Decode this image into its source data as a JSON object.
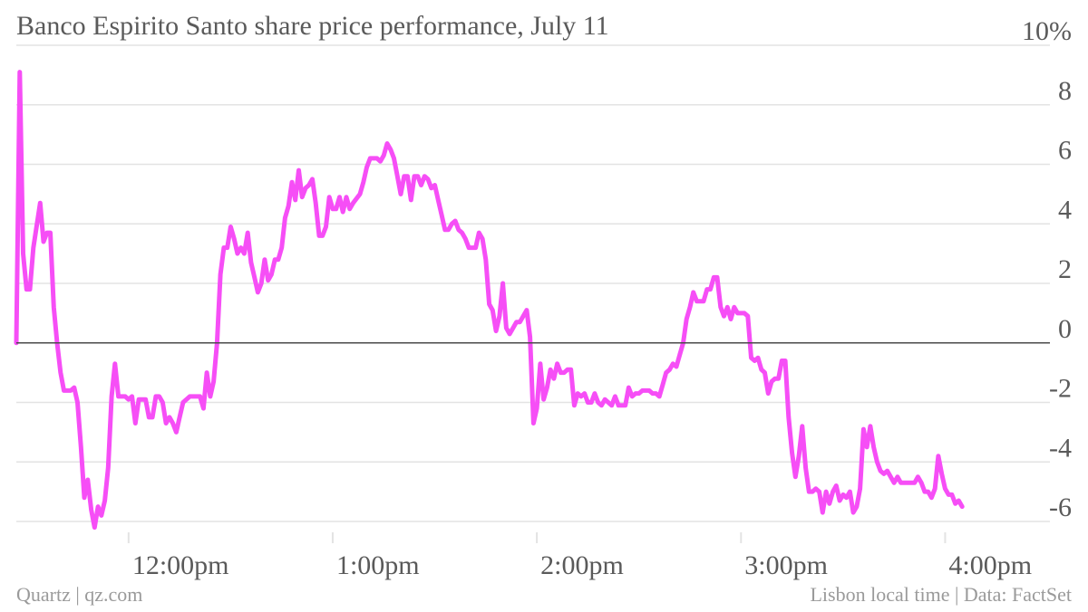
{
  "chart_data": {
    "type": "line",
    "title": "Banco Espirito Santo share price performance, July 11",
    "xlabel": "",
    "ylabel": "",
    "y_unit_label": "10%",
    "ylim": [
      -6,
      10
    ],
    "y_ticks": [
      {
        "value": 10,
        "label": "10%"
      },
      {
        "value": 8,
        "label": "8"
      },
      {
        "value": 6,
        "label": "6"
      },
      {
        "value": 4,
        "label": "4"
      },
      {
        "value": 2,
        "label": "2"
      },
      {
        "value": 0,
        "label": "0"
      },
      {
        "value": -2,
        "label": "-2"
      },
      {
        "value": -4,
        "label": "-4"
      },
      {
        "value": -6,
        "label": "-6"
      }
    ],
    "x_ticks": [
      {
        "time": "12:00",
        "label": "12:00pm"
      },
      {
        "time": "13:00",
        "label": "1:00pm"
      },
      {
        "time": "14:00",
        "label": "2:00pm"
      },
      {
        "time": "15:00",
        "label": "3:00pm"
      },
      {
        "time": "16:00",
        "label": "4:00pm"
      }
    ],
    "xlim": [
      "11:27",
      "16:30"
    ],
    "grid": true,
    "legend": "none",
    "line_color": "#f64ef6",
    "series": [
      {
        "values": [
          [
            "11:27",
            0.0
          ],
          [
            "11:28",
            9.1
          ],
          [
            "11:29",
            3.0
          ],
          [
            "11:30",
            1.8
          ],
          [
            "11:31",
            1.8
          ],
          [
            "11:32",
            3.2
          ],
          [
            "11:34",
            4.7
          ],
          [
            "11:35",
            3.4
          ],
          [
            "11:36",
            3.7
          ],
          [
            "11:37",
            3.7
          ],
          [
            "11:38",
            1.2
          ],
          [
            "11:39",
            0.0
          ],
          [
            "11:40",
            -1.0
          ],
          [
            "11:41",
            -1.6
          ],
          [
            "11:42",
            -1.6
          ],
          [
            "11:43",
            -1.6
          ],
          [
            "11:44",
            -1.5
          ],
          [
            "11:45",
            -2.0
          ],
          [
            "11:46",
            -3.5
          ],
          [
            "11:47",
            -5.2
          ],
          [
            "11:48",
            -4.6
          ],
          [
            "11:49",
            -5.6
          ],
          [
            "11:50",
            -6.2
          ],
          [
            "11:51",
            -5.5
          ],
          [
            "11:52",
            -5.8
          ],
          [
            "11:53",
            -5.3
          ],
          [
            "11:54",
            -4.2
          ],
          [
            "11:55",
            -1.8
          ],
          [
            "11:56",
            -0.7
          ],
          [
            "11:57",
            -1.8
          ],
          [
            "11:59",
            -1.8
          ],
          [
            "12:00",
            -1.9
          ],
          [
            "12:01",
            -1.8
          ],
          [
            "12:02",
            -2.7
          ],
          [
            "12:03",
            -1.9
          ],
          [
            "12:05",
            -1.9
          ],
          [
            "12:06",
            -2.5
          ],
          [
            "12:07",
            -2.5
          ],
          [
            "12:08",
            -1.8
          ],
          [
            "12:09",
            -1.8
          ],
          [
            "12:10",
            -2.0
          ],
          [
            "12:11",
            -2.7
          ],
          [
            "12:12",
            -2.5
          ],
          [
            "12:13",
            -2.7
          ],
          [
            "12:14",
            -3.0
          ],
          [
            "12:15",
            -2.5
          ],
          [
            "12:16",
            -2.0
          ],
          [
            "12:18",
            -1.8
          ],
          [
            "12:19",
            -1.8
          ],
          [
            "12:20",
            -1.8
          ],
          [
            "12:21",
            -1.8
          ],
          [
            "12:22",
            -2.2
          ],
          [
            "12:23",
            -1.0
          ],
          [
            "12:24",
            -1.8
          ],
          [
            "12:25",
            -1.3
          ],
          [
            "12:26",
            0.0
          ],
          [
            "12:27",
            2.3
          ],
          [
            "12:28",
            3.2
          ],
          [
            "12:29",
            3.2
          ],
          [
            "12:30",
            3.9
          ],
          [
            "12:31",
            3.5
          ],
          [
            "12:32",
            3.0
          ],
          [
            "12:33",
            3.2
          ],
          [
            "12:34",
            3.0
          ],
          [
            "12:35",
            3.7
          ],
          [
            "12:36",
            2.7
          ],
          [
            "12:37",
            2.2
          ],
          [
            "12:38",
            1.7
          ],
          [
            "12:39",
            2.0
          ],
          [
            "12:40",
            2.8
          ],
          [
            "12:41",
            2.1
          ],
          [
            "12:42",
            2.3
          ],
          [
            "12:43",
            2.8
          ],
          [
            "12:44",
            2.8
          ],
          [
            "12:45",
            3.2
          ],
          [
            "12:46",
            4.2
          ],
          [
            "12:47",
            4.6
          ],
          [
            "12:48",
            5.4
          ],
          [
            "12:49",
            4.8
          ],
          [
            "12:50",
            5.8
          ],
          [
            "12:51",
            4.9
          ],
          [
            "12:52",
            5.2
          ],
          [
            "12:53",
            5.3
          ],
          [
            "12:54",
            5.5
          ],
          [
            "12:55",
            4.7
          ],
          [
            "12:56",
            3.6
          ],
          [
            "12:57",
            3.6
          ],
          [
            "12:58",
            3.9
          ],
          [
            "12:59",
            4.9
          ],
          [
            "13:00",
            4.5
          ],
          [
            "13:01",
            4.5
          ],
          [
            "13:02",
            4.9
          ],
          [
            "13:03",
            4.4
          ],
          [
            "13:04",
            4.9
          ],
          [
            "13:05",
            4.5
          ],
          [
            "13:06",
            4.7
          ],
          [
            "13:08",
            5.0
          ],
          [
            "13:09",
            5.4
          ],
          [
            "13:10",
            5.9
          ],
          [
            "13:11",
            6.2
          ],
          [
            "13:12",
            6.2
          ],
          [
            "13:13",
            6.2
          ],
          [
            "13:14",
            6.1
          ],
          [
            "13:15",
            6.3
          ],
          [
            "13:16",
            6.7
          ],
          [
            "13:17",
            6.5
          ],
          [
            "13:18",
            6.2
          ],
          [
            "13:19",
            5.6
          ],
          [
            "13:20",
            5.0
          ],
          [
            "13:21",
            5.6
          ],
          [
            "13:22",
            5.6
          ],
          [
            "13:23",
            4.8
          ],
          [
            "13:24",
            5.6
          ],
          [
            "13:25",
            5.6
          ],
          [
            "13:26",
            5.3
          ],
          [
            "13:27",
            5.6
          ],
          [
            "13:28",
            5.5
          ],
          [
            "13:29",
            5.2
          ],
          [
            "13:30",
            5.3
          ],
          [
            "13:31",
            4.8
          ],
          [
            "13:32",
            4.3
          ],
          [
            "13:33",
            3.8
          ],
          [
            "13:34",
            3.8
          ],
          [
            "13:35",
            4.0
          ],
          [
            "13:36",
            4.1
          ],
          [
            "13:37",
            3.8
          ],
          [
            "13:38",
            3.7
          ],
          [
            "13:39",
            3.5
          ],
          [
            "13:40",
            3.2
          ],
          [
            "13:41",
            3.2
          ],
          [
            "13:42",
            3.2
          ],
          [
            "13:43",
            3.7
          ],
          [
            "13:44",
            3.5
          ],
          [
            "13:45",
            2.8
          ],
          [
            "13:46",
            1.3
          ],
          [
            "13:47",
            1.1
          ],
          [
            "13:48",
            0.4
          ],
          [
            "13:49",
            0.9
          ],
          [
            "13:50",
            2.0
          ],
          [
            "13:51",
            0.5
          ],
          [
            "13:52",
            0.3
          ],
          [
            "13:53",
            0.5
          ],
          [
            "13:54",
            0.7
          ],
          [
            "13:55",
            0.7
          ],
          [
            "13:56",
            0.9
          ],
          [
            "13:57",
            1.1
          ],
          [
            "13:58",
            0.2
          ],
          [
            "13:59",
            -2.7
          ],
          [
            "14:00",
            -2.2
          ],
          [
            "14:01",
            -0.7
          ],
          [
            "14:02",
            -1.9
          ],
          [
            "14:03",
            -1.5
          ],
          [
            "14:04",
            -0.9
          ],
          [
            "14:05",
            -1.2
          ],
          [
            "14:06",
            -0.7
          ],
          [
            "14:07",
            -1.0
          ],
          [
            "14:08",
            -1.0
          ],
          [
            "14:09",
            -0.9
          ],
          [
            "14:10",
            -0.9
          ],
          [
            "14:11",
            -2.1
          ],
          [
            "14:12",
            -1.7
          ],
          [
            "14:13",
            -1.8
          ],
          [
            "14:14",
            -1.7
          ],
          [
            "14:15",
            -2.0
          ],
          [
            "14:16",
            -2.0
          ],
          [
            "14:17",
            -1.7
          ],
          [
            "14:18",
            -2.0
          ],
          [
            "14:19",
            -2.1
          ],
          [
            "14:20",
            -1.9
          ],
          [
            "14:21",
            -2.0
          ],
          [
            "14:22",
            -2.1
          ],
          [
            "14:23",
            -1.8
          ],
          [
            "14:24",
            -2.1
          ],
          [
            "14:25",
            -2.1
          ],
          [
            "14:26",
            -2.1
          ],
          [
            "14:27",
            -1.5
          ],
          [
            "14:28",
            -1.8
          ],
          [
            "14:29",
            -1.7
          ],
          [
            "14:30",
            -1.7
          ],
          [
            "14:31",
            -1.6
          ],
          [
            "14:32",
            -1.6
          ],
          [
            "14:33",
            -1.6
          ],
          [
            "14:34",
            -1.7
          ],
          [
            "14:35",
            -1.7
          ],
          [
            "14:36",
            -1.8
          ],
          [
            "14:37",
            -1.4
          ],
          [
            "14:38",
            -1.0
          ],
          [
            "14:39",
            -0.9
          ],
          [
            "14:40",
            -0.7
          ],
          [
            "14:41",
            -0.8
          ],
          [
            "14:42",
            -0.4
          ],
          [
            "14:43",
            0.0
          ],
          [
            "14:44",
            0.8
          ],
          [
            "14:45",
            1.2
          ],
          [
            "14:46",
            1.7
          ],
          [
            "14:47",
            1.4
          ],
          [
            "14:48",
            1.4
          ],
          [
            "14:49",
            1.4
          ],
          [
            "14:50",
            1.8
          ],
          [
            "14:51",
            1.8
          ],
          [
            "14:52",
            2.2
          ],
          [
            "14:53",
            2.2
          ],
          [
            "14:54",
            1.2
          ],
          [
            "14:55",
            0.9
          ],
          [
            "14:56",
            1.2
          ],
          [
            "14:57",
            0.8
          ],
          [
            "14:58",
            1.2
          ],
          [
            "14:59",
            1.0
          ],
          [
            "15:00",
            1.0
          ],
          [
            "15:01",
            1.0
          ],
          [
            "15:02",
            0.9
          ],
          [
            "15:03",
            -0.5
          ],
          [
            "15:04",
            -0.6
          ],
          [
            "15:05",
            -0.5
          ],
          [
            "15:06",
            -0.9
          ],
          [
            "15:07",
            -1.0
          ],
          [
            "15:08",
            -1.7
          ],
          [
            "15:09",
            -1.3
          ],
          [
            "15:10",
            -1.2
          ],
          [
            "15:11",
            -1.2
          ],
          [
            "15:12",
            -0.6
          ],
          [
            "15:13",
            -0.6
          ],
          [
            "15:14",
            -2.5
          ],
          [
            "15:15",
            -3.7
          ],
          [
            "15:16",
            -4.5
          ],
          [
            "15:17",
            -3.8
          ],
          [
            "15:18",
            -2.8
          ],
          [
            "15:19",
            -4.2
          ],
          [
            "15:20",
            -5.0
          ],
          [
            "15:21",
            -5.0
          ],
          [
            "15:22",
            -4.9
          ],
          [
            "15:23",
            -5.0
          ],
          [
            "15:24",
            -5.7
          ],
          [
            "15:25",
            -5.0
          ],
          [
            "15:26",
            -5.4
          ],
          [
            "15:27",
            -5.0
          ],
          [
            "15:28",
            -4.8
          ],
          [
            "15:29",
            -5.3
          ],
          [
            "15:30",
            -5.1
          ],
          [
            "15:31",
            -5.2
          ],
          [
            "15:32",
            -5.0
          ],
          [
            "15:33",
            -5.7
          ],
          [
            "15:34",
            -5.5
          ],
          [
            "15:35",
            -4.9
          ],
          [
            "15:36",
            -2.9
          ],
          [
            "15:37",
            -3.5
          ],
          [
            "15:38",
            -2.8
          ],
          [
            "15:39",
            -3.5
          ],
          [
            "15:40",
            -4.0
          ],
          [
            "15:41",
            -4.3
          ],
          [
            "15:42",
            -4.4
          ],
          [
            "15:43",
            -4.3
          ],
          [
            "15:44",
            -4.5
          ],
          [
            "15:45",
            -4.7
          ],
          [
            "15:46",
            -4.5
          ],
          [
            "15:47",
            -4.7
          ],
          [
            "15:48",
            -4.7
          ],
          [
            "15:49",
            -4.7
          ],
          [
            "15:50",
            -4.7
          ],
          [
            "15:51",
            -4.7
          ],
          [
            "15:52",
            -4.5
          ],
          [
            "15:53",
            -4.7
          ],
          [
            "15:54",
            -5.0
          ],
          [
            "15:55",
            -5.0
          ],
          [
            "15:56",
            -5.2
          ],
          [
            "15:57",
            -4.9
          ],
          [
            "15:58",
            -3.8
          ],
          [
            "15:59",
            -4.4
          ],
          [
            "16:00",
            -4.9
          ],
          [
            "16:01",
            -5.1
          ],
          [
            "16:02",
            -5.1
          ],
          [
            "16:03",
            -5.4
          ],
          [
            "16:04",
            -5.3
          ],
          [
            "16:05",
            -5.5
          ]
        ]
      }
    ]
  },
  "footer": {
    "left": "Quartz | qz.com",
    "right": "Lisbon local time | Data: FactSet"
  },
  "colors": {
    "line": "#f64ef6",
    "grid": "#e3e3e3",
    "zero_line": "#4a4a4a",
    "text": "#5a5a5a",
    "muted": "#9a9a9a"
  }
}
